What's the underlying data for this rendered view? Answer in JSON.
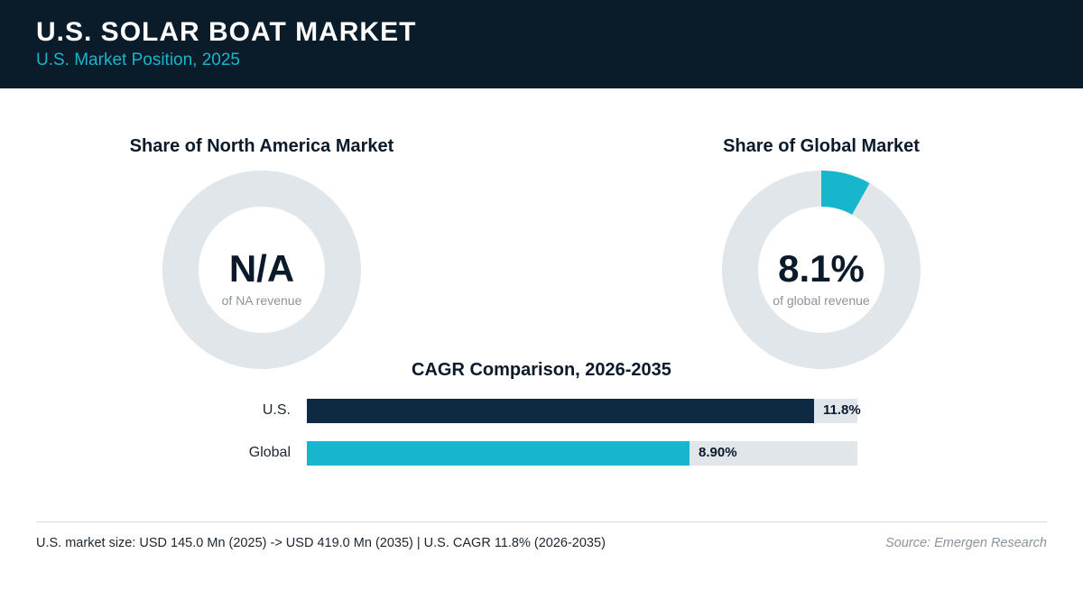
{
  "header": {
    "title": "U.S. SOLAR BOAT MARKET",
    "subtitle": "U.S. Market Position, 2025"
  },
  "chart_data": [
    {
      "type": "pie",
      "variant": "donut",
      "title": "Share of North America Market",
      "value_label": "N/A",
      "caption": "of NA revenue",
      "value": null,
      "colors": {
        "fill": "#17b6cc",
        "track": "#e1e6ea"
      }
    },
    {
      "type": "pie",
      "variant": "donut",
      "title": "Share of Global Market",
      "value_label": "8.1%",
      "caption": "of global revenue",
      "value": 8.1,
      "colors": {
        "fill": "#17b6cc",
        "track": "#e1e6ea"
      }
    },
    {
      "type": "bar",
      "orientation": "horizontal",
      "title": "CAGR Comparison, 2026-2035",
      "categories": [
        "U.S.",
        "Global"
      ],
      "values": [
        11.8,
        8.9
      ],
      "value_labels": [
        "11.8%",
        "8.90%"
      ],
      "xlim": [
        0,
        12.8
      ],
      "colors": [
        "#0e2a42",
        "#17b6cc"
      ],
      "track_color": "#e1e6ea"
    }
  ],
  "footer": {
    "summary": "U.S. market size: USD 145.0 Mn (2025) -> USD 419.0 Mn (2035)  |  U.S. CAGR 11.8% (2026-2035)",
    "source": "Source: Emergen Research"
  }
}
